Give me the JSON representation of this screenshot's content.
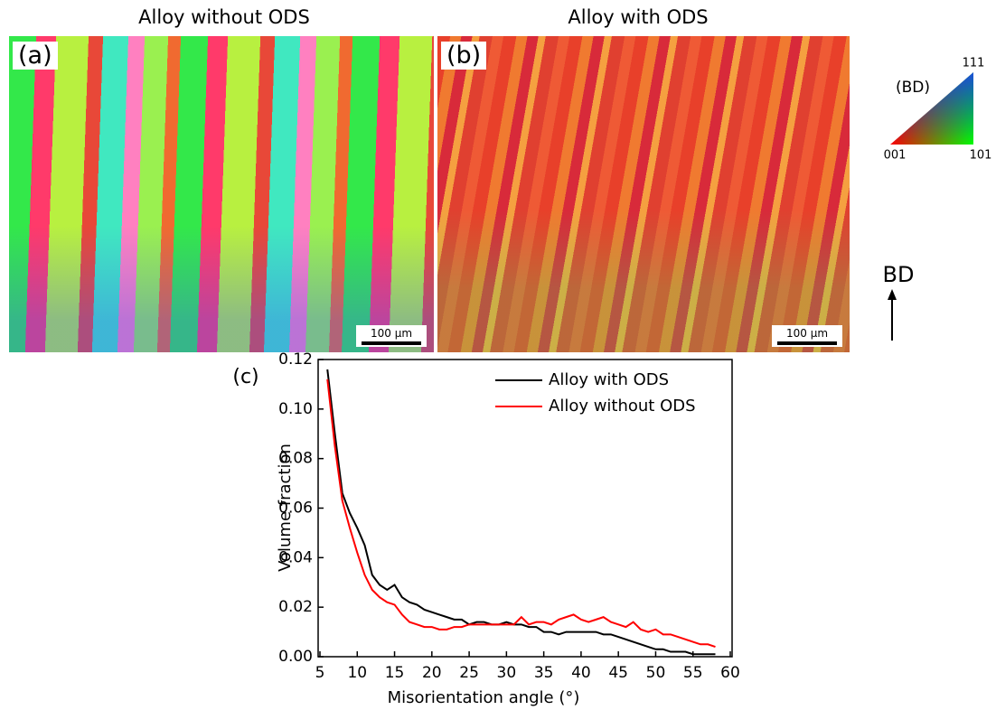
{
  "panels": {
    "a": {
      "title": "Alloy without ODS",
      "label": "(a)",
      "scale_bar": "100 µm"
    },
    "b": {
      "title": "Alloy with ODS",
      "label": "(b)",
      "scale_bar": "100 µm"
    }
  },
  "color_key": {
    "title": "(BD)",
    "top": "111",
    "left": "001",
    "right": "101"
  },
  "build_direction": "BD",
  "chart_data": {
    "type": "line",
    "panel_label": "(c)",
    "x_label": "Misorientation angle (°)",
    "y_label": "Volume fraction",
    "xlim": [
      5,
      60
    ],
    "ylim": [
      0,
      0.12
    ],
    "xticks": [
      5,
      10,
      15,
      20,
      25,
      30,
      35,
      40,
      45,
      50,
      55,
      60
    ],
    "yticks": [
      {
        "value": 0,
        "label": "0.00"
      },
      0.02,
      0.04,
      0.06,
      0.08,
      {
        "value": 0.1,
        "label": "0.10"
      },
      0.12
    ],
    "x": [
      6,
      7,
      8,
      9,
      10,
      11,
      12,
      13,
      14,
      15,
      16,
      17,
      18,
      19,
      20,
      21,
      22,
      23,
      24,
      25,
      26,
      27,
      28,
      29,
      30,
      31,
      32,
      33,
      34,
      35,
      36,
      37,
      38,
      39,
      40,
      41,
      42,
      43,
      44,
      45,
      46,
      47,
      48,
      49,
      50,
      51,
      52,
      53,
      54,
      55,
      56,
      57,
      58
    ],
    "series": [
      {
        "name": "Alloy with ODS",
        "color": "#000000",
        "values": [
          0.116,
          0.09,
          0.066,
          0.058,
          0.052,
          0.045,
          0.033,
          0.029,
          0.027,
          0.029,
          0.024,
          0.022,
          0.021,
          0.019,
          0.018,
          0.017,
          0.016,
          0.015,
          0.015,
          0.013,
          0.014,
          0.014,
          0.013,
          0.013,
          0.014,
          0.013,
          0.013,
          0.012,
          0.012,
          0.01,
          0.01,
          0.009,
          0.01,
          0.01,
          0.01,
          0.01,
          0.01,
          0.009,
          0.009,
          0.008,
          0.007,
          0.006,
          0.005,
          0.004,
          0.003,
          0.003,
          0.002,
          0.002,
          0.002,
          0.001,
          0.001,
          0.001,
          0.001
        ]
      },
      {
        "name": "Alloy without ODS",
        "color": "#ff0000",
        "values": [
          0.112,
          0.085,
          0.063,
          0.052,
          0.042,
          0.033,
          0.027,
          0.024,
          0.022,
          0.021,
          0.017,
          0.014,
          0.013,
          0.012,
          0.012,
          0.011,
          0.011,
          0.012,
          0.012,
          0.013,
          0.013,
          0.013,
          0.013,
          0.013,
          0.013,
          0.013,
          0.016,
          0.013,
          0.014,
          0.014,
          0.013,
          0.015,
          0.016,
          0.017,
          0.015,
          0.014,
          0.015,
          0.016,
          0.014,
          0.013,
          0.012,
          0.014,
          0.011,
          0.01,
          0.011,
          0.009,
          0.009,
          0.008,
          0.007,
          0.006,
          0.005,
          0.005,
          0.004
        ]
      }
    ]
  }
}
